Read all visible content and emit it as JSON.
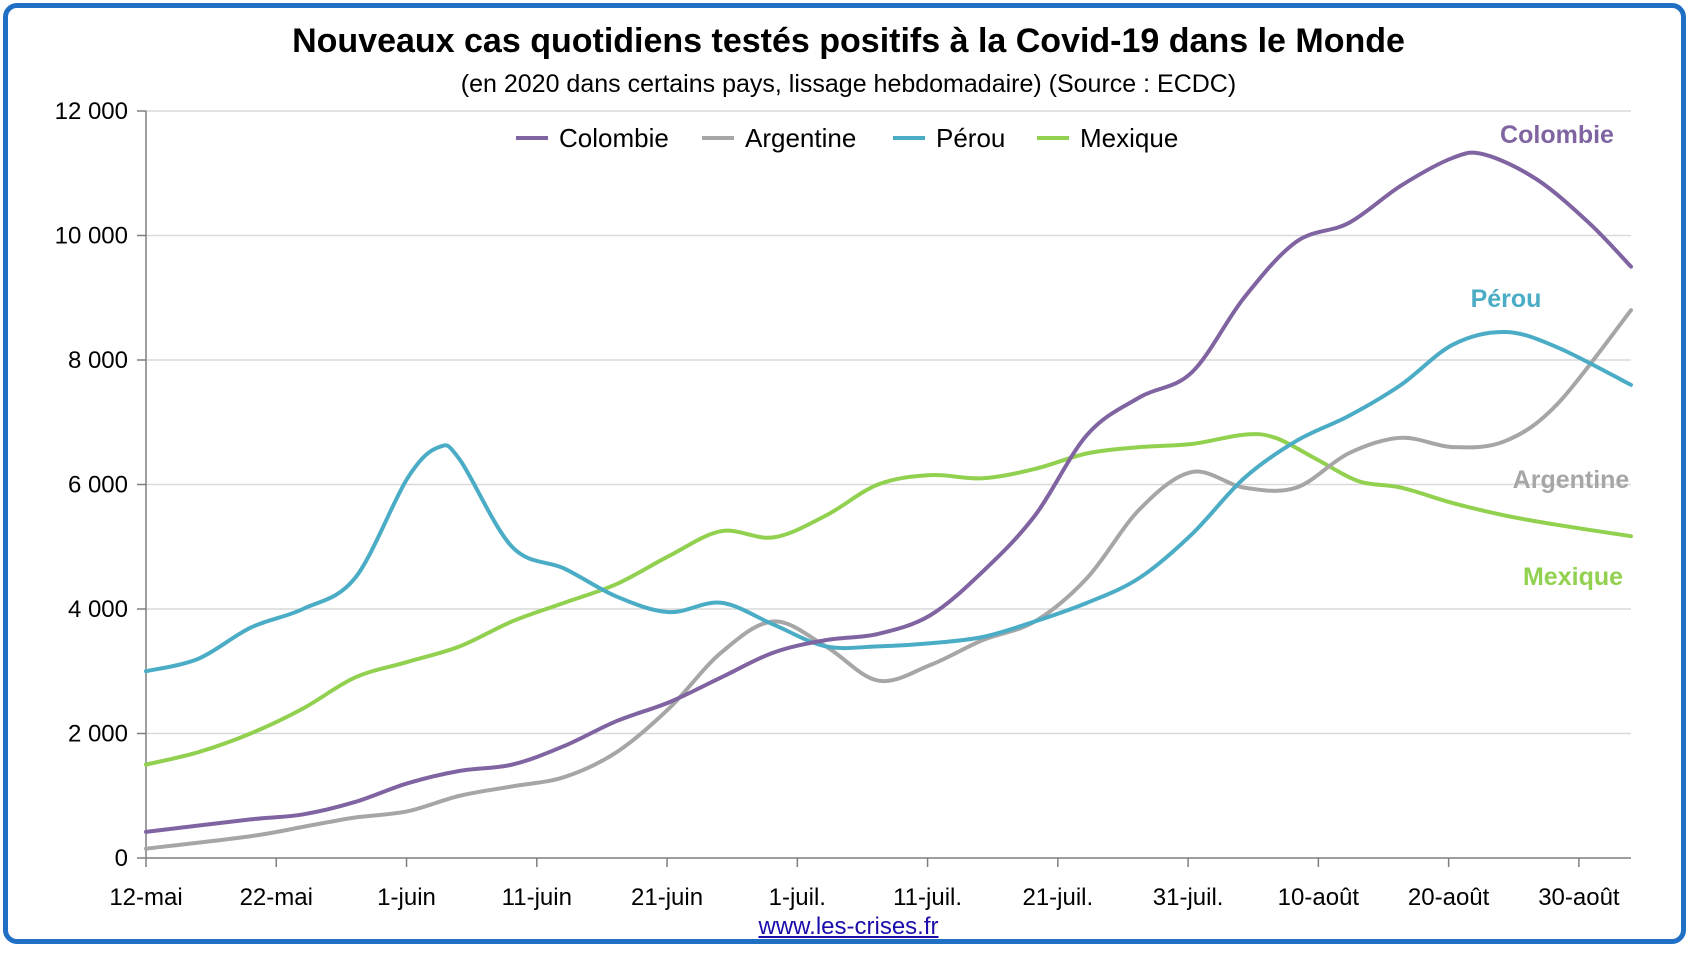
{
  "title": "Nouveaux cas quotidiens testés positifs à la Covid-19 dans le Monde",
  "subtitle": "(en 2020 dans certains pays, lissage hebdomadaire) (Source : ECDC)",
  "source_link": "www.les-crises.fr",
  "colors": {
    "frame": "#1f6fc5",
    "Colombie": "#8064a2",
    "Argentine": "#a6a6a6",
    "Pérou": "#4bacc6",
    "Mexique": "#92d050",
    "grid": "#d9d9d9"
  },
  "chart_data": {
    "type": "line",
    "title": "Nouveaux cas quotidiens testés positifs à la Covid-19 dans le Monde",
    "subtitle": "(en 2020 dans certains pays, lissage hebdomadaire) (Source : ECDC)",
    "ylim": [
      0,
      12000
    ],
    "yticks": [
      0,
      2000,
      4000,
      6000,
      8000,
      10000,
      12000
    ],
    "ytick_labels": [
      "0",
      "2 000",
      "4 000",
      "6 000",
      "8 000",
      "10 000",
      "12 000"
    ],
    "xtick_labels": [
      "12-mai",
      "22-mai",
      "1-juin",
      "11-juin",
      "21-juin",
      "1-juil.",
      "11-juil.",
      "21-juil.",
      "31-juil.",
      "10-août",
      "20-août",
      "30-août"
    ],
    "x_start": "12-mai",
    "x_end": "3-sept.",
    "grid": true,
    "legend": "top-center",
    "series": [
      {
        "name": "Colombie",
        "end_label": "Colombie",
        "values": [
          [
            0,
            420
          ],
          [
            10,
            620
          ],
          [
            15,
            700
          ],
          [
            20,
            900
          ],
          [
            25,
            1200
          ],
          [
            30,
            1400
          ],
          [
            35,
            1500
          ],
          [
            40,
            1800
          ],
          [
            45,
            2200
          ],
          [
            50,
            2500
          ],
          [
            55,
            2900
          ],
          [
            60,
            3300
          ],
          [
            65,
            3500
          ],
          [
            70,
            3600
          ],
          [
            75,
            3900
          ],
          [
            80,
            4600
          ],
          [
            85,
            5500
          ],
          [
            90,
            6800
          ],
          [
            95,
            7400
          ],
          [
            100,
            7800
          ],
          [
            105,
            9000
          ],
          [
            110,
            9900
          ],
          [
            115,
            10200
          ],
          [
            120,
            10800
          ],
          [
            125,
            11250
          ],
          [
            128,
            11300
          ],
          [
            133,
            10900
          ],
          [
            138,
            10200
          ],
          [
            142,
            9500
          ]
        ]
      },
      {
        "name": "Argentine",
        "end_label": "Argentine",
        "values": [
          [
            0,
            150
          ],
          [
            10,
            350
          ],
          [
            15,
            500
          ],
          [
            20,
            650
          ],
          [
            25,
            750
          ],
          [
            30,
            1000
          ],
          [
            35,
            1150
          ],
          [
            40,
            1300
          ],
          [
            45,
            1700
          ],
          [
            50,
            2400
          ],
          [
            55,
            3300
          ],
          [
            60,
            3800
          ],
          [
            65,
            3400
          ],
          [
            70,
            2850
          ],
          [
            75,
            3100
          ],
          [
            80,
            3500
          ],
          [
            85,
            3800
          ],
          [
            90,
            4500
          ],
          [
            95,
            5600
          ],
          [
            100,
            6200
          ],
          [
            105,
            5950
          ],
          [
            110,
            5950
          ],
          [
            115,
            6500
          ],
          [
            120,
            6750
          ],
          [
            125,
            6600
          ],
          [
            130,
            6700
          ],
          [
            135,
            7300
          ],
          [
            142,
            8800
          ]
        ]
      },
      {
        "name": "Pérou",
        "end_label": "Pérou",
        "values": [
          [
            0,
            3000
          ],
          [
            5,
            3200
          ],
          [
            10,
            3700
          ],
          [
            15,
            4000
          ],
          [
            20,
            4500
          ],
          [
            25,
            6100
          ],
          [
            28,
            6600
          ],
          [
            30,
            6400
          ],
          [
            35,
            5000
          ],
          [
            40,
            4650
          ],
          [
            45,
            4200
          ],
          [
            50,
            3950
          ],
          [
            55,
            4100
          ],
          [
            60,
            3750
          ],
          [
            65,
            3400
          ],
          [
            70,
            3400
          ],
          [
            75,
            3450
          ],
          [
            80,
            3550
          ],
          [
            85,
            3800
          ],
          [
            90,
            4100
          ],
          [
            95,
            4500
          ],
          [
            100,
            5200
          ],
          [
            105,
            6100
          ],
          [
            110,
            6700
          ],
          [
            115,
            7100
          ],
          [
            120,
            7600
          ],
          [
            125,
            8250
          ],
          [
            130,
            8450
          ],
          [
            135,
            8200
          ],
          [
            142,
            7600
          ]
        ]
      },
      {
        "name": "Mexique",
        "end_label": "Mexique",
        "values": [
          [
            0,
            1500
          ],
          [
            5,
            1700
          ],
          [
            10,
            2000
          ],
          [
            15,
            2400
          ],
          [
            20,
            2900
          ],
          [
            25,
            3150
          ],
          [
            30,
            3400
          ],
          [
            35,
            3800
          ],
          [
            40,
            4100
          ],
          [
            45,
            4400
          ],
          [
            50,
            4850
          ],
          [
            55,
            5250
          ],
          [
            60,
            5150
          ],
          [
            65,
            5500
          ],
          [
            70,
            6000
          ],
          [
            75,
            6150
          ],
          [
            80,
            6100
          ],
          [
            85,
            6250
          ],
          [
            90,
            6500
          ],
          [
            95,
            6600
          ],
          [
            100,
            6650
          ],
          [
            105,
            6800
          ],
          [
            108,
            6750
          ],
          [
            112,
            6400
          ],
          [
            116,
            6050
          ],
          [
            120,
            5950
          ],
          [
            125,
            5700
          ],
          [
            130,
            5500
          ],
          [
            135,
            5350
          ],
          [
            142,
            5170
          ]
        ]
      }
    ]
  }
}
